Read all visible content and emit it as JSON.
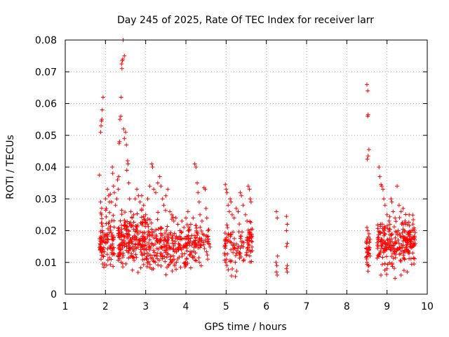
{
  "chart_data": {
    "type": "scatter",
    "title": "Day 245 of 2025, Rate Of TEC Index for receiver larr",
    "xlabel": "GPS time / hours",
    "ylabel": "ROTI / TECUs",
    "xlim": [
      1,
      10
    ],
    "ylim": [
      0,
      0.08
    ],
    "grid": true,
    "marker": "+",
    "color": "#ff0000",
    "xticks": [
      "1",
      "2",
      "3",
      "4",
      "5",
      "6",
      "7",
      "8",
      "9",
      "10"
    ],
    "yticks": [
      "0",
      "0.01",
      "0.02",
      "0.03",
      "0.04",
      "0.05",
      "0.06",
      "0.07",
      "0.08"
    ],
    "series": [
      {
        "name": "ROTI",
        "points": [
          [
            1.85,
            0.0375
          ],
          [
            1.88,
            0.051
          ],
          [
            1.89,
            0.053
          ],
          [
            1.9,
            0.0545
          ],
          [
            1.91,
            0.055
          ],
          [
            1.92,
            0.058
          ],
          [
            1.94,
            0.062
          ],
          [
            1.88,
            0.029
          ],
          [
            1.9,
            0.025
          ],
          [
            1.92,
            0.02
          ],
          [
            1.95,
            0.017
          ],
          [
            1.87,
            0.014
          ],
          [
            1.89,
            0.011
          ],
          [
            1.93,
            0.0095
          ],
          [
            1.96,
            0.0085
          ],
          [
            2.0,
            0.03
          ],
          [
            2.02,
            0.027
          ],
          [
            2.05,
            0.033
          ],
          [
            2.08,
            0.031
          ],
          [
            2.1,
            0.029
          ],
          [
            2.12,
            0.0315
          ],
          [
            2.15,
            0.029
          ],
          [
            2.17,
            0.04
          ],
          [
            2.18,
            0.038
          ],
          [
            2.2,
            0.034
          ],
          [
            2.22,
            0.032
          ],
          [
            2.25,
            0.028
          ],
          [
            2.28,
            0.03
          ],
          [
            2.3,
            0.036
          ],
          [
            2.32,
            0.033
          ],
          [
            2.33,
            0.037
          ],
          [
            2.34,
            0.0475
          ],
          [
            2.35,
            0.048
          ],
          [
            2.36,
            0.055
          ],
          [
            2.38,
            0.056
          ],
          [
            2.39,
            0.062
          ],
          [
            2.4,
            0.0725
          ],
          [
            2.41,
            0.071
          ],
          [
            2.42,
            0.0735
          ],
          [
            2.43,
            0.074
          ],
          [
            2.44,
            0.08
          ],
          [
            2.47,
            0.075
          ],
          [
            2.45,
            0.052
          ],
          [
            2.47,
            0.049
          ],
          [
            2.5,
            0.051
          ],
          [
            2.52,
            0.047
          ],
          [
            2.55,
            0.042
          ],
          [
            2.56,
            0.041
          ],
          [
            2.53,
            0.039
          ],
          [
            2.58,
            0.035
          ],
          [
            2.6,
            0.03
          ],
          [
            2.63,
            0.026
          ],
          [
            2.66,
            0.024
          ],
          [
            2.7,
            0.025
          ],
          [
            2.74,
            0.03
          ],
          [
            2.78,
            0.033
          ],
          [
            2.82,
            0.031
          ],
          [
            2.86,
            0.029
          ],
          [
            2.9,
            0.031
          ],
          [
            2.95,
            0.028
          ],
          [
            3.0,
            0.025
          ],
          [
            3.05,
            0.03
          ],
          [
            3.1,
            0.034
          ],
          [
            3.15,
            0.041
          ],
          [
            3.17,
            0.04
          ],
          [
            3.2,
            0.033
          ],
          [
            3.25,
            0.032
          ],
          [
            3.3,
            0.035
          ],
          [
            3.35,
            0.037
          ],
          [
            3.38,
            0.034
          ],
          [
            3.42,
            0.03
          ],
          [
            3.45,
            0.028
          ],
          [
            3.5,
            0.031
          ],
          [
            3.55,
            0.033
          ],
          [
            3.6,
            0.026
          ],
          [
            3.65,
            0.025
          ],
          [
            3.7,
            0.023
          ],
          [
            3.75,
            0.024
          ],
          [
            3.8,
            0.022
          ],
          [
            3.85,
            0.02
          ],
          [
            3.9,
            0.023
          ],
          [
            3.95,
            0.021
          ],
          [
            4.0,
            0.024
          ],
          [
            4.05,
            0.026
          ],
          [
            4.08,
            0.02
          ],
          [
            4.12,
            0.022
          ],
          [
            4.18,
            0.024
          ],
          [
            4.22,
            0.041
          ],
          [
            4.25,
            0.04
          ],
          [
            4.28,
            0.035
          ],
          [
            4.3,
            0.032
          ],
          [
            4.33,
            0.029
          ],
          [
            4.35,
            0.025
          ],
          [
            4.4,
            0.023
          ],
          [
            4.45,
            0.0335
          ],
          [
            4.48,
            0.033
          ],
          [
            4.5,
            0.027
          ],
          [
            4.52,
            0.024
          ],
          [
            4.55,
            0.02
          ],
          [
            4.98,
            0.0345
          ],
          [
            5.0,
            0.033
          ],
          [
            5.02,
            0.032
          ],
          [
            5.05,
            0.028
          ],
          [
            5.08,
            0.026
          ],
          [
            5.1,
            0.03
          ],
          [
            5.12,
            0.029
          ],
          [
            5.15,
            0.025
          ],
          [
            5.2,
            0.024
          ],
          [
            5.25,
            0.027
          ],
          [
            5.3,
            0.026
          ],
          [
            5.35,
            0.032
          ],
          [
            5.38,
            0.031
          ],
          [
            5.42,
            0.028
          ],
          [
            5.48,
            0.025
          ],
          [
            5.52,
            0.023
          ],
          [
            5.55,
            0.034
          ],
          [
            5.58,
            0.033
          ],
          [
            5.6,
            0.03
          ],
          [
            5.62,
            0.029
          ],
          [
            6.25,
            0.026
          ],
          [
            6.27,
            0.024
          ],
          [
            6.24,
            0.01
          ],
          [
            6.26,
            0.009
          ],
          [
            6.28,
            0.012
          ],
          [
            6.25,
            0.007
          ],
          [
            6.27,
            0.006
          ],
          [
            6.5,
            0.0245
          ],
          [
            6.52,
            0.022
          ],
          [
            6.5,
            0.02
          ],
          [
            6.52,
            0.016
          ],
          [
            6.5,
            0.015
          ],
          [
            6.52,
            0.009
          ],
          [
            6.5,
            0.008
          ],
          [
            6.52,
            0.007
          ],
          [
            8.5,
            0.066
          ],
          [
            8.52,
            0.064
          ],
          [
            8.53,
            0.0565
          ],
          [
            8.52,
            0.056
          ],
          [
            8.55,
            0.0455
          ],
          [
            8.53,
            0.0435
          ],
          [
            8.51,
            0.0425
          ],
          [
            8.5,
            0.021
          ],
          [
            8.52,
            0.02
          ],
          [
            8.54,
            0.018
          ],
          [
            8.5,
            0.016
          ],
          [
            8.55,
            0.014
          ],
          [
            8.52,
            0.012
          ],
          [
            8.5,
            0.01
          ],
          [
            8.55,
            0.009
          ],
          [
            8.8,
            0.04
          ],
          [
            8.82,
            0.037
          ],
          [
            8.85,
            0.0345
          ],
          [
            8.87,
            0.034
          ],
          [
            8.9,
            0.033
          ],
          [
            8.92,
            0.03
          ],
          [
            8.95,
            0.028
          ],
          [
            9.0,
            0.025
          ],
          [
            9.05,
            0.023
          ],
          [
            9.1,
            0.03
          ],
          [
            9.12,
            0.029
          ],
          [
            9.15,
            0.026
          ],
          [
            9.2,
            0.024
          ],
          [
            9.25,
            0.034
          ],
          [
            9.3,
            0.028
          ],
          [
            9.35,
            0.026
          ],
          [
            9.4,
            0.027
          ],
          [
            9.45,
            0.023
          ],
          [
            9.5,
            0.022
          ],
          [
            9.55,
            0.025
          ],
          [
            9.6,
            0.02
          ],
          [
            9.65,
            0.018
          ],
          [
            9.7,
            0.016
          ],
          [
            9.2,
            0.005
          ],
          [
            9.35,
            0.006
          ],
          [
            9.5,
            0.007
          ],
          [
            9.0,
            0.008
          ],
          [
            8.85,
            0.006
          ]
        ],
        "dense_clusters": [
          {
            "x": [
              1.85,
              2.0
            ],
            "y": [
              0.006,
              0.03
            ],
            "count": 40
          },
          {
            "x": [
              2.0,
              2.22
            ],
            "y": [
              0.004,
              0.03
            ],
            "count": 55
          },
          {
            "x": [
              2.3,
              2.7
            ],
            "y": [
              0.004,
              0.028
            ],
            "count": 120
          },
          {
            "x": [
              2.7,
              3.1
            ],
            "y": [
              0.004,
              0.03
            ],
            "count": 110
          },
          {
            "x": [
              3.1,
              3.7
            ],
            "y": [
              0.004,
              0.028
            ],
            "count": 130
          },
          {
            "x": [
              3.7,
              4.2
            ],
            "y": [
              0.005,
              0.024
            ],
            "count": 90
          },
          {
            "x": [
              4.2,
              4.6
            ],
            "y": [
              0.006,
              0.026
            ],
            "count": 60
          },
          {
            "x": [
              4.95,
              5.15
            ],
            "y": [
              0.004,
              0.026
            ],
            "count": 35
          },
          {
            "x": [
              5.15,
              5.45
            ],
            "y": [
              0.004,
              0.024
            ],
            "count": 40
          },
          {
            "x": [
              5.5,
              5.65
            ],
            "y": [
              0.004,
              0.028
            ],
            "count": 40
          },
          {
            "x": [
              8.48,
              8.58
            ],
            "y": [
              0.006,
              0.021
            ],
            "count": 25
          },
          {
            "x": [
              8.75,
              9.1
            ],
            "y": [
              0.005,
              0.028
            ],
            "count": 90
          },
          {
            "x": [
              9.1,
              9.45
            ],
            "y": [
              0.006,
              0.026
            ],
            "count": 80
          },
          {
            "x": [
              9.45,
              9.72
            ],
            "y": [
              0.008,
              0.026
            ],
            "count": 70
          }
        ]
      }
    ]
  }
}
